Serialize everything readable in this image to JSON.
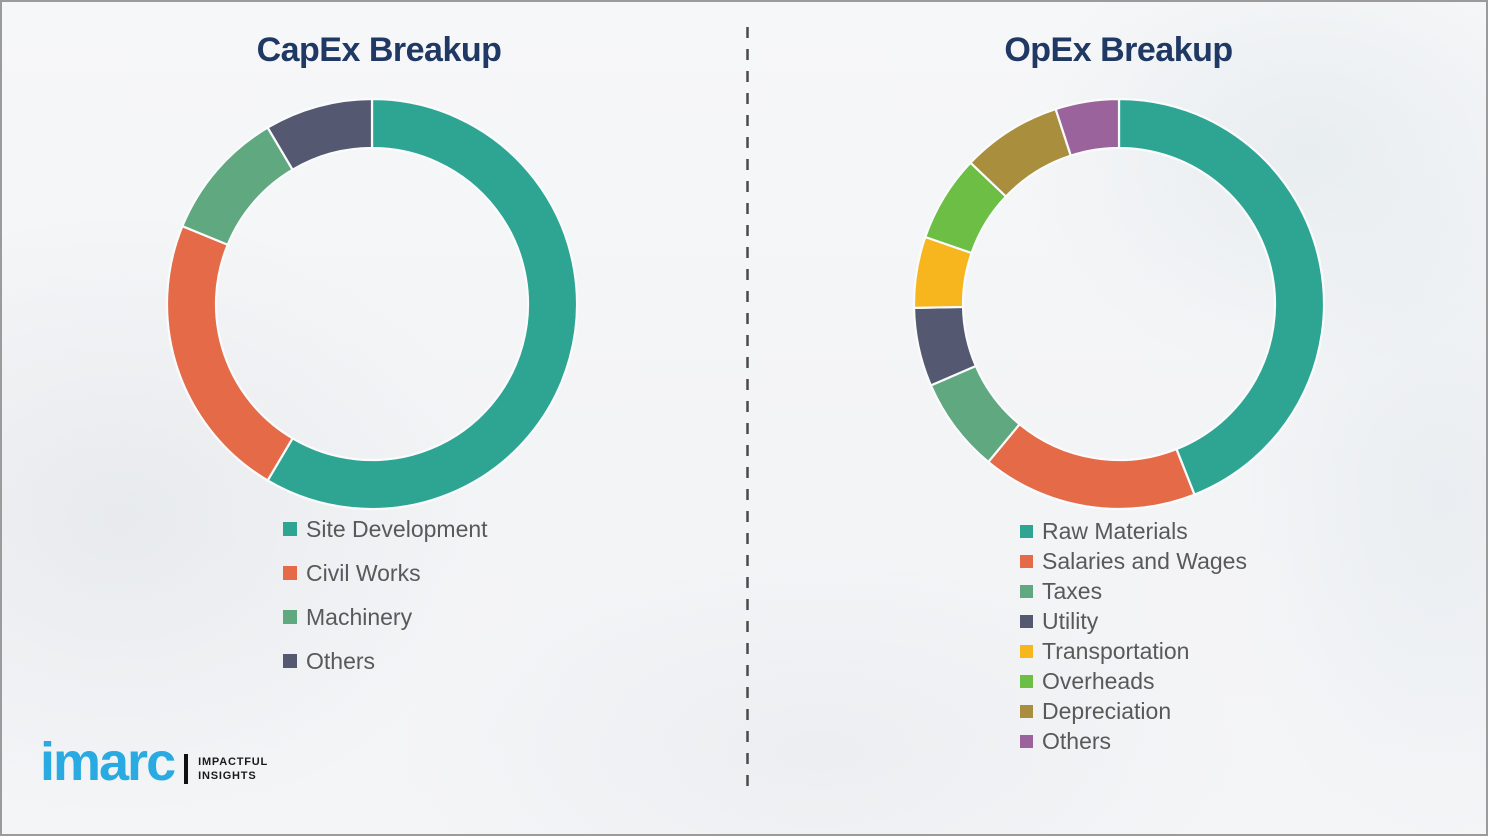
{
  "page": {
    "background_color": "#f4f5f7",
    "border_color": "#9b9b9b",
    "divider_color": "#4a4a4a",
    "legend_text_color": "#595959"
  },
  "branding": {
    "logo_text": "imarc",
    "logo_color": "#29abe2",
    "tagline_line1": "IMPACTFUL",
    "tagline_line2": "INSIGHTS"
  },
  "chart_data": [
    {
      "type": "pie",
      "variant": "donut",
      "title": "CapEx Breakup",
      "title_color": "#1f3864",
      "start_angle_deg": 0,
      "direction": "clockwise",
      "legend_position": "bottom",
      "units": "percent (estimated from arc angles, no data labels shown)",
      "labels": [
        "Site Development",
        "Civil Works",
        "Machinery",
        "Others"
      ],
      "values": [
        58.5,
        22.7,
        10.3,
        8.5
      ],
      "colors": [
        "#2ea593",
        "#e56a47",
        "#60a87f",
        "#545971"
      ]
    },
    {
      "type": "pie",
      "variant": "donut",
      "title": "OpEx Breakup",
      "title_color": "#1f3864",
      "start_angle_deg": 0,
      "direction": "clockwise",
      "legend_position": "bottom",
      "units": "percent (estimated from arc angles, no data labels shown)",
      "labels": [
        "Raw Materials",
        "Salaries and Wages",
        "Taxes",
        "Utility",
        "Transportation",
        "Overheads",
        "Depreciation",
        "Others"
      ],
      "values": [
        44.0,
        17.0,
        7.5,
        6.2,
        5.6,
        6.8,
        7.9,
        5.0
      ],
      "colors": [
        "#2ea593",
        "#e56a47",
        "#60a87f",
        "#545971",
        "#f7b61d",
        "#6cbe45",
        "#a98f3d",
        "#9b639b"
      ]
    }
  ]
}
